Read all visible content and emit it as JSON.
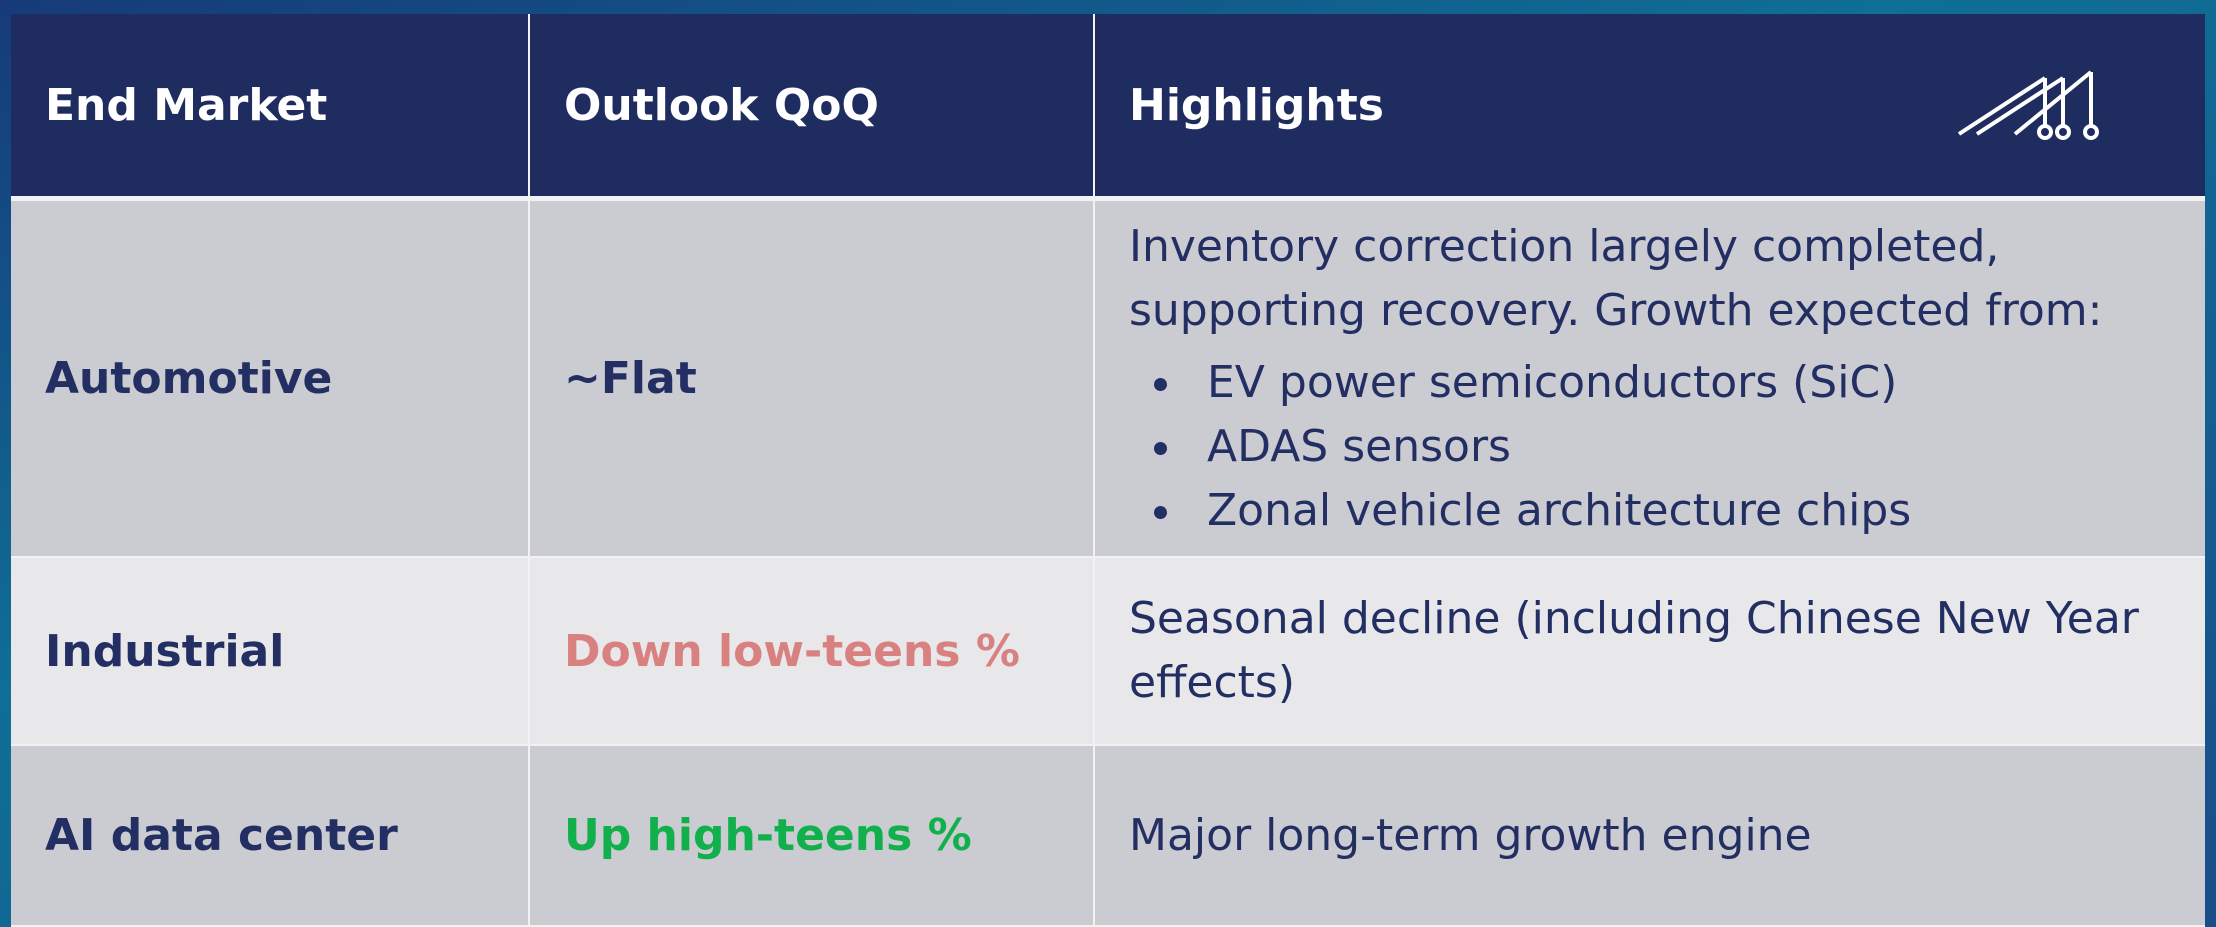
{
  "table": {
    "columns": [
      "End Market",
      "Outlook QoQ",
      "Highlights"
    ],
    "rows": [
      {
        "market": "Automotive",
        "outlook": "~Flat",
        "outlook_tone": "neutral",
        "text": "Inventory correction largely completed, supporting recovery. Growth expected from:",
        "bullets": [
          "EV power semiconductors (SiC)",
          "ADAS sensors",
          "Zonal vehicle architecture chips"
        ]
      },
      {
        "market": "Industrial",
        "outlook": "Down low-teens %",
        "outlook_tone": "down",
        "text": "Seasonal decline (including Chinese New Year effects)",
        "bullets": []
      },
      {
        "market": "AI data center",
        "outlook": "Up high-teens %",
        "outlook_tone": "up",
        "text": "Major long-term growth engine",
        "bullets": []
      }
    ]
  }
}
